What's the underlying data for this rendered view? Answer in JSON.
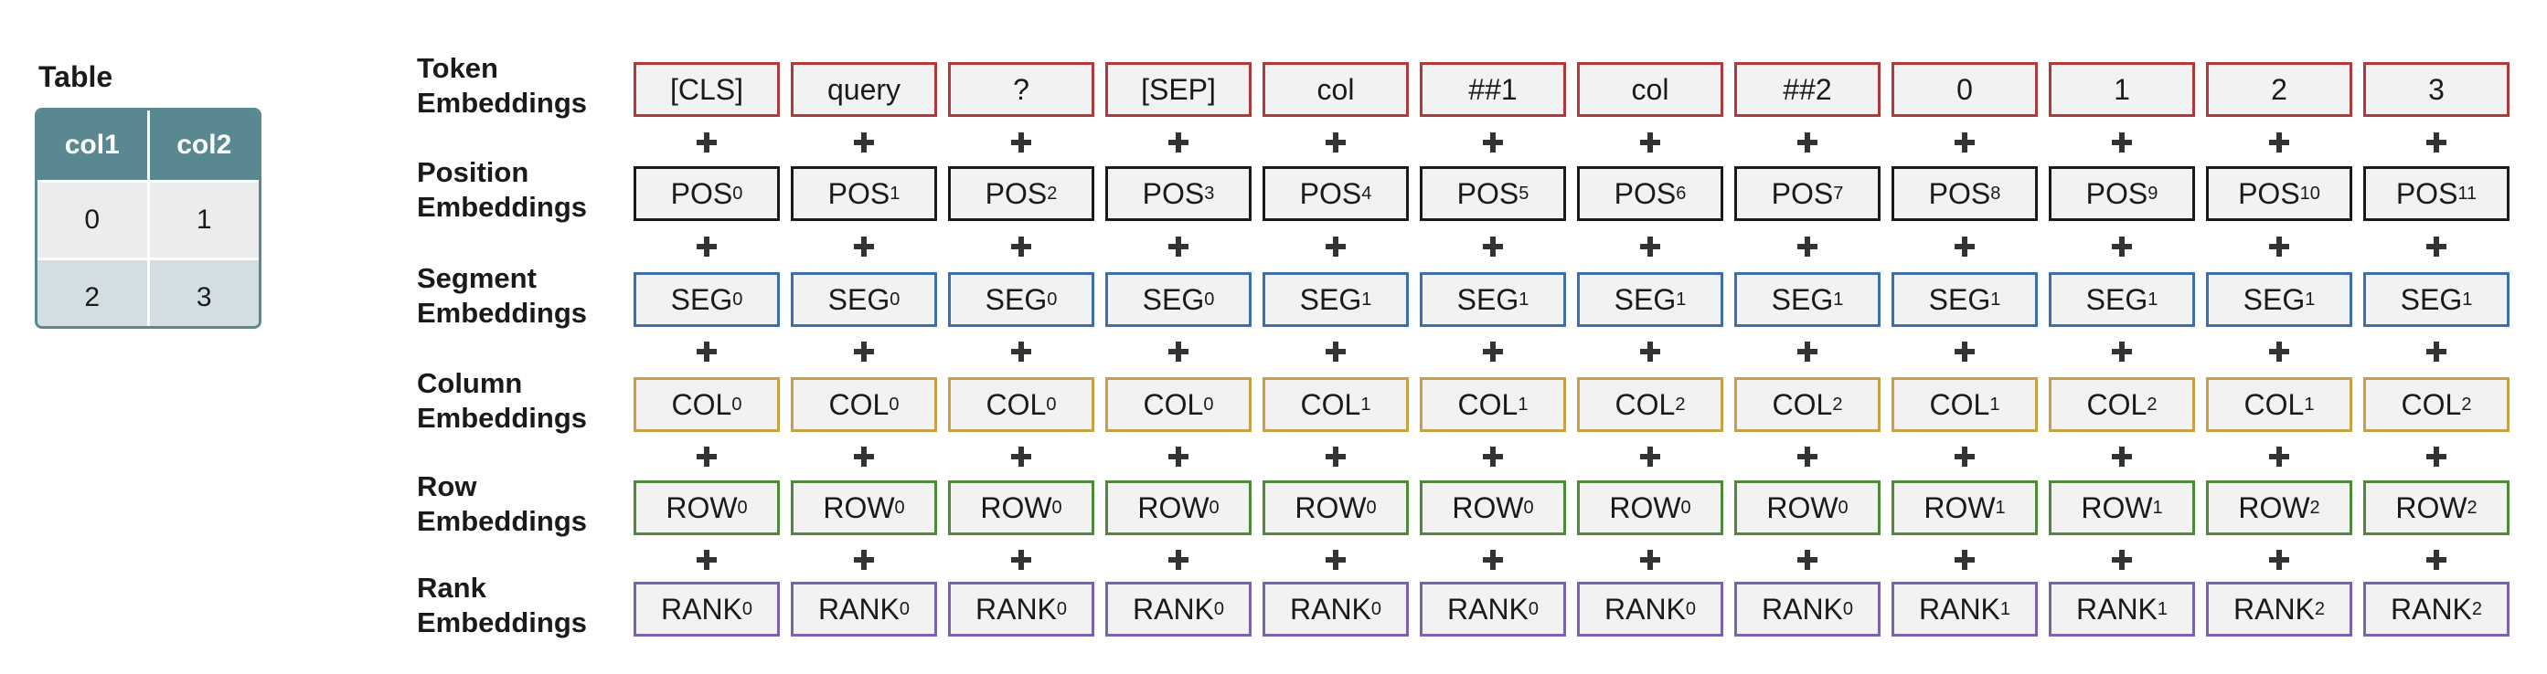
{
  "table_panel": {
    "title": "Table",
    "headers": [
      "col1",
      "col2"
    ],
    "rows": [
      [
        "0",
        "1"
      ],
      [
        "2",
        "3"
      ]
    ],
    "colors": {
      "header_bg": "#5a8890",
      "row_light": "#ececec",
      "row_alt": "#d3dee2"
    }
  },
  "embedding_rows": [
    {
      "label_line1": "Token",
      "label_line2": "Embeddings",
      "color": "#b03a3a",
      "tokens": [
        {
          "base": "[CLS]",
          "sub": ""
        },
        {
          "base": "query",
          "sub": ""
        },
        {
          "base": "?",
          "sub": ""
        },
        {
          "base": "[SEP]",
          "sub": ""
        },
        {
          "base": "col",
          "sub": ""
        },
        {
          "base": "##1",
          "sub": ""
        },
        {
          "base": "col",
          "sub": ""
        },
        {
          "base": "##2",
          "sub": ""
        },
        {
          "base": "0",
          "sub": ""
        },
        {
          "base": "1",
          "sub": ""
        },
        {
          "base": "2",
          "sub": ""
        },
        {
          "base": "3",
          "sub": ""
        }
      ]
    },
    {
      "label_line1": "Position",
      "label_line2": "Embeddings",
      "color": "#1a1a1a",
      "tokens": [
        {
          "base": "POS",
          "sub": "0"
        },
        {
          "base": "POS",
          "sub": "1"
        },
        {
          "base": "POS",
          "sub": "2"
        },
        {
          "base": "POS",
          "sub": "3"
        },
        {
          "base": "POS",
          "sub": "4"
        },
        {
          "base": "POS",
          "sub": "5"
        },
        {
          "base": "POS",
          "sub": "6"
        },
        {
          "base": "POS",
          "sub": "7"
        },
        {
          "base": "POS",
          "sub": "8"
        },
        {
          "base": "POS",
          "sub": "9"
        },
        {
          "base": "POS",
          "sub": "10"
        },
        {
          "base": "POS",
          "sub": "11"
        }
      ]
    },
    {
      "label_line1": "Segment",
      "label_line2": "Embeddings",
      "color": "#3d6fb0",
      "tokens": [
        {
          "base": "SEG",
          "sub": "0"
        },
        {
          "base": "SEG",
          "sub": "0"
        },
        {
          "base": "SEG",
          "sub": "0"
        },
        {
          "base": "SEG",
          "sub": "0"
        },
        {
          "base": "SEG",
          "sub": "1"
        },
        {
          "base": "SEG",
          "sub": "1"
        },
        {
          "base": "SEG",
          "sub": "1"
        },
        {
          "base": "SEG",
          "sub": "1"
        },
        {
          "base": "SEG",
          "sub": "1"
        },
        {
          "base": "SEG",
          "sub": "1"
        },
        {
          "base": "SEG",
          "sub": "1"
        },
        {
          "base": "SEG",
          "sub": "1"
        }
      ]
    },
    {
      "label_line1": "Column",
      "label_line2": "Embeddings",
      "color": "#c9a046",
      "tokens": [
        {
          "base": "COL",
          "sub": "0"
        },
        {
          "base": "COL",
          "sub": "0"
        },
        {
          "base": "COL",
          "sub": "0"
        },
        {
          "base": "COL",
          "sub": "0"
        },
        {
          "base": "COL",
          "sub": "1"
        },
        {
          "base": "COL",
          "sub": "1"
        },
        {
          "base": "COL",
          "sub": "2"
        },
        {
          "base": "COL",
          "sub": "2"
        },
        {
          "base": "COL",
          "sub": "1"
        },
        {
          "base": "COL",
          "sub": "2"
        },
        {
          "base": "COL",
          "sub": "1"
        },
        {
          "base": "COL",
          "sub": "2"
        }
      ]
    },
    {
      "label_line1": "Row",
      "label_line2": "Embeddings",
      "color": "#4f8a3a",
      "tokens": [
        {
          "base": "ROW",
          "sub": "0"
        },
        {
          "base": "ROW",
          "sub": "0"
        },
        {
          "base": "ROW",
          "sub": "0"
        },
        {
          "base": "ROW",
          "sub": "0"
        },
        {
          "base": "ROW",
          "sub": "0"
        },
        {
          "base": "ROW",
          "sub": "0"
        },
        {
          "base": "ROW",
          "sub": "0"
        },
        {
          "base": "ROW",
          "sub": "0"
        },
        {
          "base": "ROW",
          "sub": "1"
        },
        {
          "base": "ROW",
          "sub": "1"
        },
        {
          "base": "ROW",
          "sub": "2"
        },
        {
          "base": "ROW",
          "sub": "2"
        }
      ]
    },
    {
      "label_line1": "Rank",
      "label_line2": "Embeddings",
      "color": "#7a62b0",
      "tokens": [
        {
          "base": "RANK",
          "sub": "0"
        },
        {
          "base": "RANK",
          "sub": "0"
        },
        {
          "base": "RANK",
          "sub": "0"
        },
        {
          "base": "RANK",
          "sub": "0"
        },
        {
          "base": "RANK",
          "sub": "0"
        },
        {
          "base": "RANK",
          "sub": "0"
        },
        {
          "base": "RANK",
          "sub": "0"
        },
        {
          "base": "RANK",
          "sub": "0"
        },
        {
          "base": "RANK",
          "sub": "1"
        },
        {
          "base": "RANK",
          "sub": "1"
        },
        {
          "base": "RANK",
          "sub": "2"
        },
        {
          "base": "RANK",
          "sub": "2"
        }
      ]
    }
  ],
  "colors": {
    "box_fill": "#f2f2f2",
    "plus": "#333333"
  }
}
